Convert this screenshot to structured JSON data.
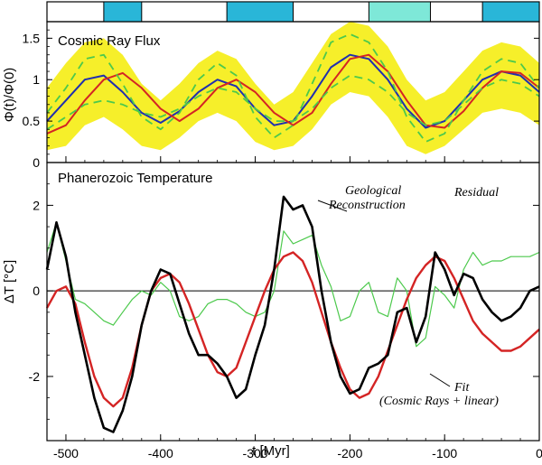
{
  "chart_data": [
    {
      "type": "line",
      "title": "Cosmic Ray Flux",
      "ylabel": "Φ(t)/Φ(0)",
      "xlim": [
        -520,
        0
      ],
      "ylim": [
        0,
        1.7
      ],
      "yticks": [
        "0",
        "0.5",
        "1",
        "1.5"
      ],
      "colors": {
        "band": "#f6ef2a",
        "blue": "#1f2fb0",
        "red": "#d42424",
        "green": "#4cc94c"
      },
      "band": {
        "x": [
          -520,
          -500,
          -480,
          -460,
          -440,
          -420,
          -400,
          -380,
          -360,
          -340,
          -320,
          -300,
          -280,
          -260,
          -240,
          -220,
          -200,
          -180,
          -160,
          -140,
          -120,
          -100,
          -80,
          -60,
          -40,
          -20,
          0
        ],
        "upper": [
          0.9,
          1.2,
          1.45,
          1.5,
          1.3,
          0.95,
          0.75,
          0.95,
          1.2,
          1.35,
          1.25,
          0.95,
          0.7,
          0.85,
          1.2,
          1.55,
          1.7,
          1.65,
          1.4,
          1.0,
          0.75,
          0.85,
          1.1,
          1.35,
          1.45,
          1.4,
          1.2
        ],
        "lower": [
          0.15,
          0.2,
          0.45,
          0.55,
          0.4,
          0.2,
          0.15,
          0.3,
          0.5,
          0.6,
          0.5,
          0.25,
          0.15,
          0.2,
          0.4,
          0.7,
          0.85,
          0.8,
          0.55,
          0.2,
          0.1,
          0.2,
          0.4,
          0.6,
          0.65,
          0.6,
          0.45
        ]
      },
      "series": [
        {
          "color": "#1f2fb0",
          "x": [
            -520,
            -500,
            -480,
            -460,
            -440,
            -420,
            -400,
            -380,
            -360,
            -340,
            -320,
            -300,
            -280,
            -260,
            -240,
            -220,
            -200,
            -180,
            -160,
            -140,
            -120,
            -100,
            -80,
            -60,
            -40,
            -20,
            0
          ],
          "y": [
            0.5,
            0.75,
            1.0,
            1.05,
            0.85,
            0.6,
            0.48,
            0.62,
            0.85,
            1.0,
            0.92,
            0.65,
            0.45,
            0.5,
            0.8,
            1.15,
            1.3,
            1.25,
            1.0,
            0.65,
            0.42,
            0.5,
            0.75,
            1.0,
            1.1,
            1.05,
            0.85
          ]
        },
        {
          "color": "#d42424",
          "x": [
            -520,
            -500,
            -480,
            -460,
            -440,
            -420,
            -400,
            -380,
            -360,
            -340,
            -320,
            -300,
            -280,
            -260,
            -240,
            -220,
            -200,
            -180,
            -160,
            -140,
            -120,
            -100,
            -80,
            -60,
            -40,
            -20,
            0
          ],
          "y": [
            0.35,
            0.45,
            0.75,
            1.0,
            1.08,
            0.9,
            0.65,
            0.5,
            0.65,
            0.9,
            1.0,
            0.85,
            0.6,
            0.45,
            0.6,
            0.95,
            1.25,
            1.3,
            1.1,
            0.75,
            0.45,
            0.42,
            0.62,
            0.9,
            1.1,
            1.08,
            0.9
          ]
        },
        {
          "color": "#4cc94c",
          "dashed": true,
          "x": [
            -520,
            -500,
            -480,
            -460,
            -440,
            -420,
            -400,
            -380,
            -360,
            -340,
            -320,
            -300,
            -280,
            -260,
            -240,
            -220,
            -200,
            -180,
            -160,
            -140,
            -120,
            -100,
            -80,
            -60,
            -40,
            -20,
            0
          ],
          "y": [
            0.6,
            0.9,
            1.25,
            1.3,
            0.95,
            0.55,
            0.4,
            0.6,
            1.0,
            1.2,
            1.05,
            0.55,
            0.3,
            0.45,
            0.95,
            1.45,
            1.55,
            1.45,
            1.1,
            0.55,
            0.25,
            0.35,
            0.75,
            1.1,
            1.25,
            1.2,
            0.9
          ]
        },
        {
          "color": "#4cc94c",
          "dashed": true,
          "x": [
            -520,
            -500,
            -480,
            -460,
            -440,
            -420,
            -400,
            -380,
            -360,
            -340,
            -320,
            -300,
            -280,
            -260,
            -240,
            -220,
            -200,
            -180,
            -160,
            -140,
            -120,
            -100,
            -80,
            -60,
            -40,
            -20,
            0
          ],
          "y": [
            0.4,
            0.55,
            0.7,
            0.75,
            0.7,
            0.6,
            0.55,
            0.65,
            0.8,
            0.9,
            0.85,
            0.65,
            0.5,
            0.5,
            0.65,
            0.9,
            1.05,
            1.0,
            0.85,
            0.6,
            0.45,
            0.5,
            0.7,
            0.9,
            1.0,
            0.95,
            0.8
          ]
        }
      ]
    },
    {
      "type": "line",
      "title": "Phanerozoic Temperature",
      "xlabel": "t [Myr]",
      "ylabel": "ΔT [°C]",
      "xlim": [
        -520,
        0
      ],
      "ylim": [
        -3.5,
        3.0
      ],
      "xticks": [
        "-500",
        "-400",
        "-300",
        "-200",
        "-100",
        "0"
      ],
      "yticks": [
        "-2",
        "0",
        "2"
      ],
      "annotations": {
        "geo1": "Geological",
        "geo2": "Reconstruction",
        "residual": "Residual",
        "fit1": "Fit",
        "fit2": "(Cosmic Rays + linear)"
      },
      "series": [
        {
          "name": "Geological Reconstruction",
          "color": "#000000",
          "x": [
            -520,
            -510,
            -500,
            -490,
            -480,
            -470,
            -460,
            -450,
            -440,
            -430,
            -420,
            -410,
            -400,
            -390,
            -380,
            -370,
            -360,
            -350,
            -340,
            -330,
            -320,
            -310,
            -300,
            -290,
            -280,
            -270,
            -260,
            -250,
            -240,
            -230,
            -220,
            -210,
            -200,
            -190,
            -180,
            -170,
            -160,
            -150,
            -140,
            -130,
            -120,
            -110,
            -100,
            -90,
            -80,
            -70,
            -60,
            -50,
            -40,
            -30,
            -20,
            -10,
            0
          ],
          "y": [
            0.5,
            1.6,
            0.8,
            -0.5,
            -1.5,
            -2.5,
            -3.2,
            -3.3,
            -2.8,
            -2.0,
            -0.8,
            0.0,
            0.5,
            0.4,
            -0.3,
            -1.0,
            -1.5,
            -1.5,
            -1.7,
            -2.0,
            -2.5,
            -2.3,
            -1.5,
            -0.8,
            0.5,
            2.2,
            1.9,
            2.0,
            1.5,
            0.0,
            -1.2,
            -2.0,
            -2.4,
            -2.3,
            -1.8,
            -1.7,
            -1.5,
            -0.5,
            -0.4,
            -1.2,
            -0.6,
            0.9,
            0.5,
            -0.1,
            0.4,
            0.3,
            -0.2,
            -0.5,
            -0.7,
            -0.6,
            -0.4,
            0.0,
            0.1
          ]
        },
        {
          "name": "Fit (Cosmic Rays + linear)",
          "color": "#d42424",
          "x": [
            -520,
            -510,
            -500,
            -490,
            -480,
            -470,
            -460,
            -450,
            -440,
            -430,
            -420,
            -410,
            -400,
            -390,
            -380,
            -370,
            -360,
            -350,
            -340,
            -330,
            -320,
            -310,
            -300,
            -290,
            -280,
            -270,
            -260,
            -250,
            -240,
            -230,
            -220,
            -210,
            -200,
            -190,
            -180,
            -170,
            -160,
            -150,
            -140,
            -130,
            -120,
            -110,
            -100,
            -90,
            -80,
            -70,
            -60,
            -50,
            -40,
            -30,
            -20,
            -10,
            0
          ],
          "y": [
            -0.4,
            0.0,
            0.1,
            -0.3,
            -1.2,
            -2.0,
            -2.5,
            -2.7,
            -2.5,
            -1.8,
            -0.8,
            0.0,
            0.3,
            0.4,
            0.2,
            -0.3,
            -0.9,
            -1.5,
            -1.9,
            -2.0,
            -1.8,
            -1.2,
            -0.6,
            0.0,
            0.5,
            0.8,
            0.9,
            0.7,
            0.2,
            -0.5,
            -1.2,
            -1.8,
            -2.3,
            -2.5,
            -2.4,
            -2.0,
            -1.4,
            -0.8,
            -0.2,
            0.3,
            0.6,
            0.8,
            0.7,
            0.3,
            -0.2,
            -0.7,
            -1.0,
            -1.2,
            -1.4,
            -1.4,
            -1.3,
            -1.1,
            -0.9
          ]
        },
        {
          "name": "Residual",
          "color": "#4cc94c",
          "x": [
            -520,
            -510,
            -500,
            -490,
            -480,
            -470,
            -460,
            -450,
            -440,
            -430,
            -420,
            -410,
            -400,
            -390,
            -380,
            -370,
            -360,
            -350,
            -340,
            -330,
            -320,
            -310,
            -300,
            -290,
            -280,
            -270,
            -260,
            -250,
            -240,
            -230,
            -220,
            -210,
            -200,
            -190,
            -180,
            -170,
            -160,
            -150,
            -140,
            -130,
            -120,
            -110,
            -100,
            -90,
            -80,
            -70,
            -60,
            -50,
            -40,
            -30,
            -20,
            -10,
            0
          ],
          "y": [
            0.9,
            1.6,
            0.7,
            -0.2,
            -0.3,
            -0.5,
            -0.7,
            -0.8,
            -0.5,
            -0.2,
            0.0,
            -0.1,
            0.2,
            0.0,
            -0.6,
            -0.7,
            -0.6,
            -0.3,
            -0.2,
            -0.2,
            -0.3,
            -0.5,
            -0.6,
            -0.5,
            0.0,
            1.4,
            1.1,
            1.2,
            1.3,
            0.6,
            0.1,
            -0.7,
            -0.6,
            0.0,
            0.2,
            -0.5,
            -0.6,
            0.3,
            0.0,
            -1.3,
            -1.1,
            0.1,
            -0.1,
            -0.4,
            0.5,
            0.9,
            0.6,
            0.7,
            0.7,
            0.8,
            0.8,
            0.8,
            0.9
          ]
        }
      ]
    }
  ],
  "timeline": {
    "blocks": [
      {
        "x0": -460,
        "x1": -420,
        "color": "#29b6d8"
      },
      {
        "x0": -330,
        "x1": -260,
        "color": "#29b6d8"
      },
      {
        "x0": -180,
        "x1": -115,
        "color": "#7ee8d8"
      },
      {
        "x0": -60,
        "x1": 0,
        "color": "#29b6d8"
      }
    ]
  }
}
